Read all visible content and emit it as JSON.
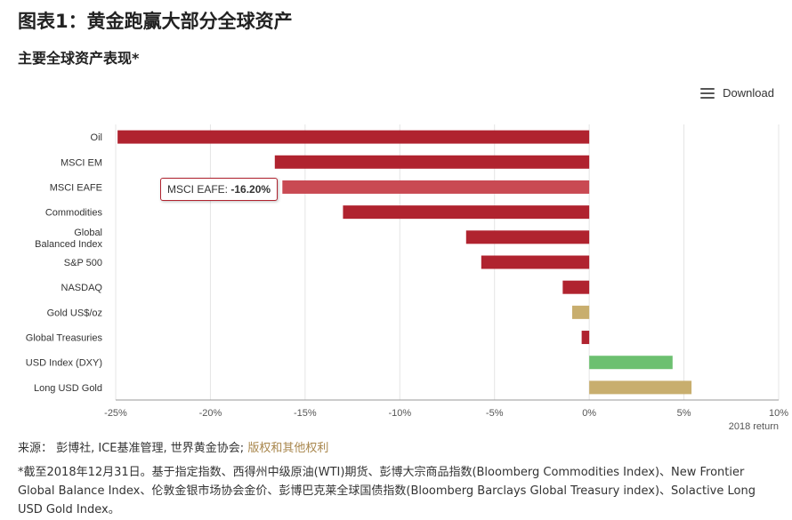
{
  "header": {
    "title": "图表1：黄金跑赢大部分全球资产",
    "subtitle": "主要全球资产表现*"
  },
  "toolbar": {
    "download_label": "Download",
    "icon": "menu-icon"
  },
  "colors": {
    "negative": "#b0232f",
    "highlight": "#c94a53",
    "gold": "#c8ae6e",
    "positive": "#6cc070",
    "grid": "#e4e4e4",
    "axis": "#999999"
  },
  "tooltip": {
    "label": "MSCI EAFE: ",
    "value": "-16.20%"
  },
  "chart_data": {
    "type": "bar",
    "orientation": "horizontal",
    "categories": [
      "Oil",
      "MSCI EM",
      "MSCI EAFE",
      "Commodities",
      "Global Balanced Index",
      "S&P 500",
      "NASDAQ",
      "Gold US$/oz",
      "Global Treasuries",
      "USD Index (DXY)",
      "Long USD Gold"
    ],
    "category_lines": [
      [
        "Oil"
      ],
      [
        "MSCI EM"
      ],
      [
        "MSCI EAFE"
      ],
      [
        "Commodities"
      ],
      [
        "Global",
        "Balanced Index"
      ],
      [
        "S&P 500"
      ],
      [
        "NASDAQ"
      ],
      [
        "Gold US$/oz"
      ],
      [
        "Global Treasuries"
      ],
      [
        "USD Index (DXY)"
      ],
      [
        "Long USD Gold"
      ]
    ],
    "values": [
      -24.9,
      -16.6,
      -16.2,
      -13.0,
      -6.5,
      -5.7,
      -1.4,
      -0.9,
      -0.4,
      4.4,
      5.4
    ],
    "bar_colors": [
      "negative",
      "negative",
      "highlight",
      "negative",
      "negative",
      "negative",
      "negative",
      "gold",
      "negative",
      "positive",
      "gold"
    ],
    "xlim": [
      -25,
      10
    ],
    "xticks": [
      -25,
      -20,
      -15,
      -10,
      -5,
      0,
      5,
      10
    ],
    "xtick_labels": [
      "-25%",
      "-20%",
      "-15%",
      "-10%",
      "-5%",
      "0%",
      "5%",
      "10%"
    ],
    "xlabel": "2018 return",
    "grid": true
  },
  "source": {
    "prefix": "来源：  彭博社, ICE基准管理, 世界黄金协会; ",
    "link": "版权和其他权利"
  },
  "footnote": "*截至2018年12月31日。基于指定指数、西得州中级原油(WTI)期货、彭博大宗商品指数(Bloomberg Commodities Index)、New Frontier Global Balance Index、伦敦金银市场协会金价、彭博巴克莱全球国债指数(Bloomberg Barclays Global Treasury index)、Solactive Long USD Gold Index。"
}
